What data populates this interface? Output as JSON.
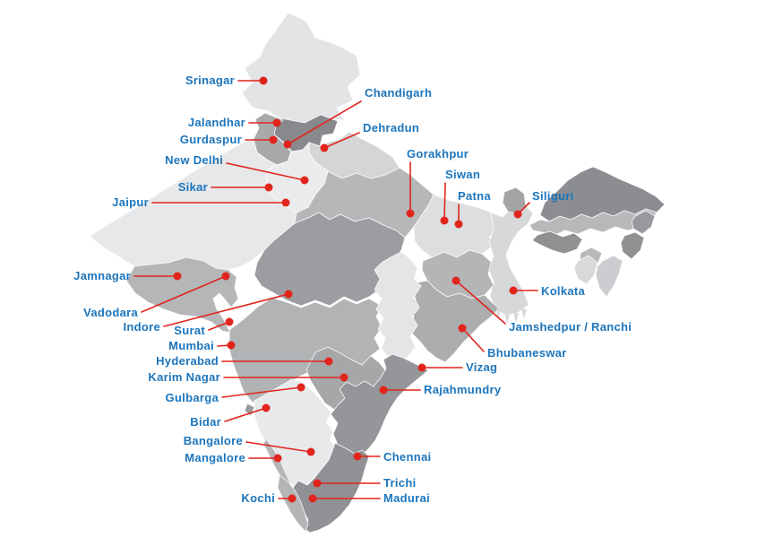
{
  "map": {
    "name": "India cities map",
    "marker_color": "#e1251c",
    "label_color": "#1c75bc",
    "dot_radius": 4.5,
    "cities": [
      {
        "name": "Srinagar",
        "dot": [
          294,
          90
        ],
        "label": [
          262,
          94
        ],
        "anchor": "end",
        "line_from": [
          266,
          90
        ]
      },
      {
        "name": "Jalandhar",
        "dot": [
          309,
          137
        ],
        "label": [
          274,
          141
        ],
        "anchor": "end",
        "line_from": [
          278,
          137
        ]
      },
      {
        "name": "Gurdaspur",
        "dot": [
          305,
          156
        ],
        "label": [
          270,
          160
        ],
        "anchor": "end",
        "line_from": [
          274,
          156
        ]
      },
      {
        "name": "Chandigarh",
        "dot": [
          321,
          161
        ],
        "label": [
          407,
          108
        ],
        "anchor": "start",
        "line_from": [
          403,
          113
        ]
      },
      {
        "name": "Dehradun",
        "dot": [
          362,
          165
        ],
        "label": [
          405,
          147
        ],
        "anchor": "start",
        "line_from": [
          401,
          148
        ]
      },
      {
        "name": "New Delhi",
        "dot": [
          340,
          201
        ],
        "label": [
          249,
          183
        ],
        "anchor": "end",
        "line_from": [
          253,
          182
        ]
      },
      {
        "name": "Sikar",
        "dot": [
          300,
          209
        ],
        "label": [
          232,
          213
        ],
        "anchor": "end",
        "line_from": [
          236,
          209
        ]
      },
      {
        "name": "Jaipur",
        "dot": [
          319,
          226
        ],
        "label": [
          166,
          230
        ],
        "anchor": "end",
        "line_from": [
          170,
          226
        ]
      },
      {
        "name": "Gorakhpur",
        "dot": [
          458,
          238
        ],
        "label": [
          454,
          176
        ],
        "anchor": "start",
        "line_from": [
          458,
          181
        ]
      },
      {
        "name": "Siwan",
        "dot": [
          496,
          246
        ],
        "label": [
          497,
          199
        ],
        "anchor": "start",
        "line_from": [
          497,
          204
        ]
      },
      {
        "name": "Patna",
        "dot": [
          512,
          250
        ],
        "label": [
          511,
          223
        ],
        "anchor": "start",
        "line_from": [
          512,
          228
        ]
      },
      {
        "name": "Siliguri",
        "dot": [
          578,
          239
        ],
        "label": [
          594,
          223
        ],
        "anchor": "start",
        "line_from": [
          591,
          226
        ]
      },
      {
        "name": "Kolkata",
        "dot": [
          573,
          324
        ],
        "label": [
          604,
          329
        ],
        "anchor": "start",
        "line_from": [
          600,
          324
        ]
      },
      {
        "name": "Jamshedpur / Ranchi",
        "dot": [
          509,
          313
        ],
        "label": [
          568,
          369
        ],
        "anchor": "start",
        "line_from": [
          564,
          361
        ]
      },
      {
        "name": "Bhubaneswar",
        "dot": [
          516,
          366
        ],
        "label": [
          544,
          398
        ],
        "anchor": "start",
        "line_from": [
          540,
          392
        ]
      },
      {
        "name": "Jamnagar",
        "dot": [
          198,
          308
        ],
        "label": [
          146,
          312
        ],
        "anchor": "end",
        "line_from": [
          150,
          308
        ]
      },
      {
        "name": "Vadodara",
        "dot": [
          252,
          308
        ],
        "label": [
          154,
          353
        ],
        "anchor": "end",
        "line_from": [
          158,
          348
        ]
      },
      {
        "name": "Indore",
        "dot": [
          322,
          328
        ],
        "label": [
          179,
          369
        ],
        "anchor": "end",
        "line_from": [
          183,
          364
        ]
      },
      {
        "name": "Surat",
        "dot": [
          256,
          359
        ],
        "label": [
          229,
          373
        ],
        "anchor": "end",
        "line_from": [
          233,
          368
        ]
      },
      {
        "name": "Mumbai",
        "dot": [
          258,
          385
        ],
        "label": [
          239,
          390
        ],
        "anchor": "end",
        "line_from": [
          243,
          386
        ]
      },
      {
        "name": "Hyderabad",
        "dot": [
          367,
          403
        ],
        "label": [
          244,
          407
        ],
        "anchor": "end",
        "line_from": [
          248,
          403
        ]
      },
      {
        "name": "Karim Nagar",
        "dot": [
          384,
          421
        ],
        "label": [
          246,
          425
        ],
        "anchor": "end",
        "line_from": [
          250,
          421
        ]
      },
      {
        "name": "Gulbarga",
        "dot": [
          336,
          432
        ],
        "label": [
          244,
          448
        ],
        "anchor": "end",
        "line_from": [
          248,
          443
        ]
      },
      {
        "name": "Bidar",
        "dot": [
          297,
          455
        ],
        "label": [
          247,
          475
        ],
        "anchor": "end",
        "line_from": [
          251,
          470
        ]
      },
      {
        "name": "Bangalore",
        "dot": [
          347,
          504
        ],
        "label": [
          271,
          496
        ],
        "anchor": "end",
        "line_from": [
          275,
          493
        ]
      },
      {
        "name": "Mangalore",
        "dot": [
          310,
          511
        ],
        "label": [
          274,
          515
        ],
        "anchor": "end",
        "line_from": [
          278,
          511
        ]
      },
      {
        "name": "Kochi",
        "dot": [
          326,
          556
        ],
        "label": [
          307,
          560
        ],
        "anchor": "end",
        "line_from": [
          311,
          556
        ]
      },
      {
        "name": "Chennai",
        "dot": [
          399,
          509
        ],
        "label": [
          428,
          514
        ],
        "anchor": "start",
        "line_from": [
          424,
          509
        ]
      },
      {
        "name": "Trichi",
        "dot": [
          354,
          539
        ],
        "label": [
          428,
          543
        ],
        "anchor": "start",
        "line_from": [
          424,
          539
        ]
      },
      {
        "name": "Madurai",
        "dot": [
          349,
          556
        ],
        "label": [
          428,
          560
        ],
        "anchor": "start",
        "line_from": [
          424,
          556
        ]
      },
      {
        "name": "Vizag",
        "dot": [
          471,
          410
        ],
        "label": [
          520,
          414
        ],
        "anchor": "start",
        "line_from": [
          516,
          410
        ]
      },
      {
        "name": "Rajahmundry",
        "dot": [
          428,
          435
        ],
        "label": [
          473,
          439
        ],
        "anchor": "start",
        "line_from": [
          469,
          435
        ]
      }
    ]
  }
}
